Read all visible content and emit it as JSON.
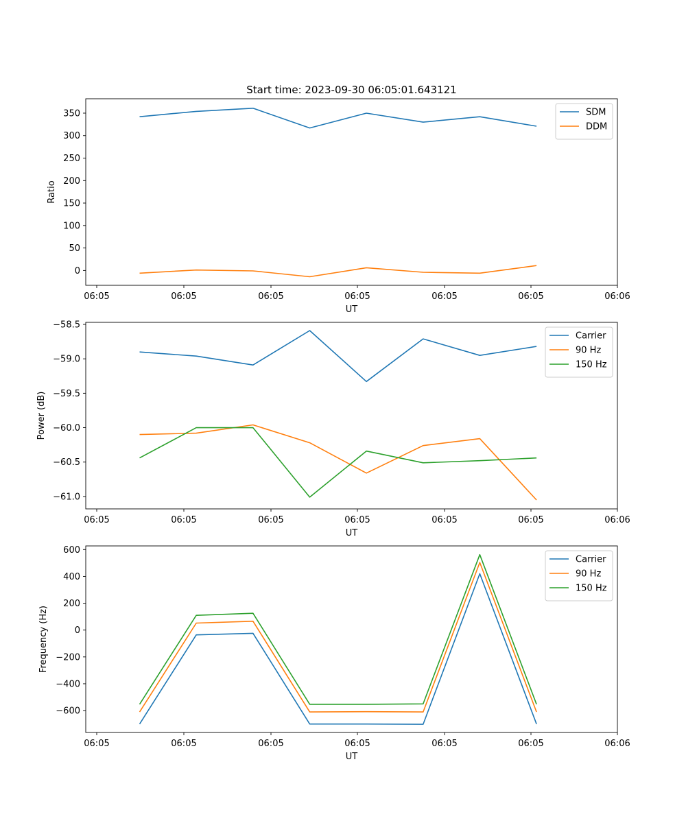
{
  "figure": {
    "title": "Start time: 2023-09-30 06:05:01.643121"
  },
  "chart_data": [
    {
      "type": "line",
      "title": "Start time: 2023-09-30 06:05:01.643121",
      "xlabel": "UT",
      "ylabel": "Ratio",
      "x_tick_labels": [
        "06:05",
        "06:05",
        "06:05",
        "06:05",
        "06:05",
        "06:05",
        "06:06"
      ],
      "ylim": [
        -33,
        382
      ],
      "y_ticks": [
        0,
        50,
        100,
        150,
        200,
        250,
        300,
        350
      ],
      "x": [
        0,
        1,
        2,
        3,
        4,
        5,
        6,
        7
      ],
      "legend": "top-right",
      "series": [
        {
          "name": "SDM",
          "color": "#1f77b4",
          "values": [
            342,
            354,
            361,
            317,
            350,
            330,
            342,
            321
          ]
        },
        {
          "name": "DDM",
          "color": "#ff7f0e",
          "values": [
            -6,
            1,
            -1,
            -14,
            6,
            -4,
            -6,
            11
          ]
        }
      ]
    },
    {
      "type": "line",
      "title": "",
      "xlabel": "UT",
      "ylabel": "Power (dB)",
      "x_tick_labels": [
        "06:05",
        "06:05",
        "06:05",
        "06:05",
        "06:05",
        "06:05",
        "06:06"
      ],
      "ylim": [
        -61.18,
        -58.47
      ],
      "y_ticks": [
        -61.0,
        -60.5,
        -60.0,
        -59.5,
        -59.0,
        -58.5
      ],
      "y_tick_labels": [
        "−61.0",
        "−60.5",
        "−60.0",
        "−59.5",
        "−59.0",
        "−58.5"
      ],
      "x": [
        0,
        1,
        2,
        3,
        4,
        5,
        6,
        7
      ],
      "legend": "top-right",
      "series": [
        {
          "name": "Carrier",
          "color": "#1f77b4",
          "values": [
            -58.9,
            -58.96,
            -59.09,
            -58.59,
            -59.33,
            -58.71,
            -58.95,
            -58.82
          ]
        },
        {
          "name": "90 Hz",
          "color": "#ff7f0e",
          "values": [
            -60.1,
            -60.08,
            -59.96,
            -60.22,
            -60.66,
            -60.26,
            -60.16,
            -61.05
          ]
        },
        {
          "name": "150 Hz",
          "color": "#2ca02c",
          "values": [
            -60.44,
            -60.0,
            -60.0,
            -61.01,
            -60.34,
            -60.51,
            -60.48,
            -60.44
          ]
        }
      ]
    },
    {
      "type": "line",
      "title": "",
      "xlabel": "UT",
      "ylabel": "Frequency (Hz)",
      "x_tick_labels": [
        "06:05",
        "06:05",
        "06:05",
        "06:05",
        "06:05",
        "06:05",
        "06:06"
      ],
      "ylim": [
        -763,
        627
      ],
      "y_ticks": [
        -600,
        -400,
        -200,
        0,
        200,
        400,
        600
      ],
      "y_tick_labels": [
        "−600",
        "−400",
        "−200",
        "0",
        "200",
        "400",
        "600"
      ],
      "x": [
        0,
        1,
        2,
        3,
        4,
        5,
        6,
        7
      ],
      "legend": "top-right",
      "series": [
        {
          "name": "Carrier",
          "color": "#1f77b4",
          "values": [
            -700,
            -36,
            -24,
            -700,
            -700,
            -702,
            420,
            -700
          ]
        },
        {
          "name": "90 Hz",
          "color": "#ff7f0e",
          "values": [
            -610,
            52,
            66,
            -610,
            -608,
            -610,
            504,
            -610
          ]
        },
        {
          "name": "150 Hz",
          "color": "#2ca02c",
          "values": [
            -553,
            110,
            125,
            -553,
            -553,
            -550,
            562,
            -553
          ]
        }
      ]
    }
  ]
}
